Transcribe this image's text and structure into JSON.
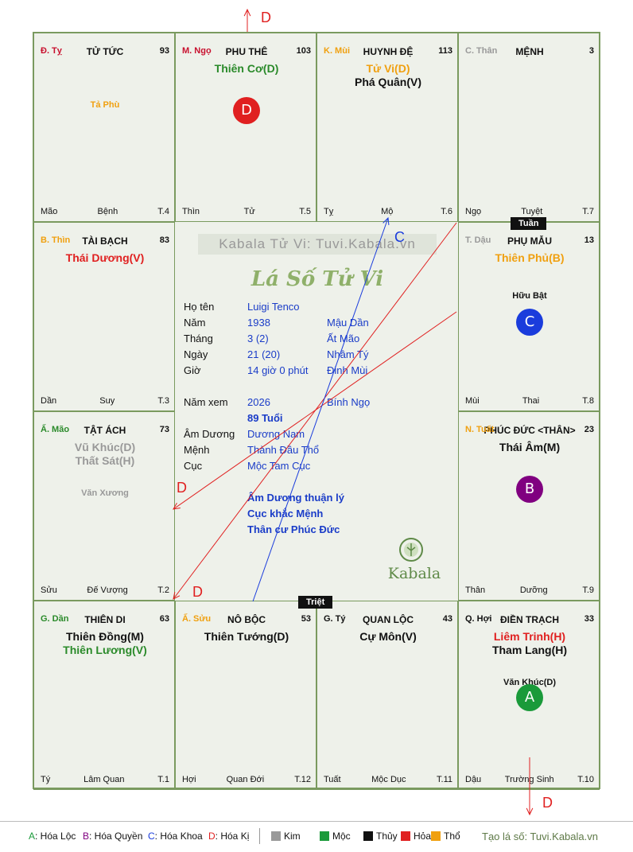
{
  "cells": [
    {
      "stem": "Đ. Tỵ",
      "stem_color": "#c8102e",
      "name": "TỬ TỨC",
      "num": "93",
      "stars": [],
      "minor": [
        "Tả Phù"
      ],
      "minor_color": "#f0a010",
      "badge": "",
      "foot": [
        "Mão",
        "Bệnh",
        "T.4"
      ]
    },
    {
      "stem": "M. Ngọ",
      "stem_color": "#c8102e",
      "name": "PHU THÊ",
      "num": "103",
      "stars": [
        {
          "t": "Thiên Cơ(D)",
          "c": "#2a8a2a"
        }
      ],
      "minor": [],
      "badge": "D",
      "badge_color": "#e02020",
      "foot": [
        "Thìn",
        "Tử",
        "T.5"
      ]
    },
    {
      "stem": "K. Mùi",
      "stem_color": "#f0a010",
      "name": "HUYNH ĐỆ",
      "num": "113",
      "stars": [
        {
          "t": "Tử Vi(D)",
          "c": "#f0a010"
        },
        {
          "t": "Phá Quân(V)",
          "c": "#111111"
        }
      ],
      "minor": [],
      "badge": "",
      "foot": [
        "Tỵ",
        "Mộ",
        "T.6"
      ]
    },
    {
      "stem": "C. Thân",
      "stem_color": "#999999",
      "name": "MỆNH",
      "num": "3",
      "stars": [],
      "minor": [],
      "badge": "",
      "foot": [
        "Ngọ",
        "Tuyệt",
        "T.7"
      ]
    },
    {
      "stem": "B. Thìn",
      "stem_color": "#f0a010",
      "name": "TÀI BẠCH",
      "num": "83",
      "stars": [
        {
          "t": "Thái Dương(V)",
          "c": "#e02020"
        }
      ],
      "minor": [],
      "badge": "",
      "foot": [
        "Dần",
        "Suy",
        "T.3"
      ]
    },
    {
      "stem": "T. Dậu",
      "stem_color": "#999999",
      "name": "PHỤ MẪU",
      "num": "13",
      "stars": [
        {
          "t": "Thiên Phủ(B)",
          "c": "#f0a010"
        }
      ],
      "minor": [
        "Hữu Bật"
      ],
      "minor_color": "#111111",
      "badge": "C",
      "badge_color": "#1a3cdc",
      "foot": [
        "Mùi",
        "Thai",
        "T.8"
      ]
    },
    {
      "stem": "Ấ. Mão",
      "stem_color": "#2a8a2a",
      "name": "TẬT ÁCH",
      "num": "73",
      "stars": [
        {
          "t": "Vũ Khúc(D)",
          "c": "#999999"
        },
        {
          "t": "Thất Sát(H)",
          "c": "#999999"
        }
      ],
      "minor": [
        "Văn Xương"
      ],
      "minor_color": "#999999",
      "badge": "",
      "foot": [
        "Sửu",
        "Đế Vượng",
        "T.2"
      ]
    },
    {
      "stem": "N. Tuất",
      "stem_color": "#f0a010",
      "name": "PHÚC ĐỨC <THÂN>",
      "num": "23",
      "stars": [
        {
          "t": "Thái Âm(M)",
          "c": "#111111"
        }
      ],
      "minor": [],
      "badge": "B",
      "badge_color": "#800080",
      "foot": [
        "Thân",
        "Dưỡng",
        "T.9"
      ]
    },
    {
      "stem": "G. Dần",
      "stem_color": "#2a8a2a",
      "name": "THIÊN DI",
      "num": "63",
      "stars": [
        {
          "t": "Thiên Đồng(M)",
          "c": "#111111"
        },
        {
          "t": "Thiên Lương(V)",
          "c": "#2a8a2a"
        }
      ],
      "minor": [],
      "badge": "",
      "foot": [
        "Tý",
        "Lâm Quan",
        "T.1"
      ]
    },
    {
      "stem": "Ấ. Sửu",
      "stem_color": "#f0a010",
      "name": "NÔ BỘC",
      "num": "53",
      "stars": [
        {
          "t": "Thiên Tướng(D)",
          "c": "#111111"
        }
      ],
      "minor": [],
      "badge": "",
      "foot": [
        "Hợi",
        "Quan Đới",
        "T.12"
      ]
    },
    {
      "stem": "G. Tý",
      "stem_color": "#111111",
      "name": "QUAN LỘC",
      "num": "43",
      "stars": [
        {
          "t": "Cự Môn(V)",
          "c": "#111111"
        }
      ],
      "minor": [],
      "badge": "",
      "foot": [
        "Tuất",
        "Mộc Dục",
        "T.11"
      ]
    },
    {
      "stem": "Q. Hợi",
      "stem_color": "#111111",
      "name": "ĐIỀN TRẠCH",
      "num": "33",
      "stars": [
        {
          "t": "Liêm Trinh(H)",
          "c": "#e02020"
        },
        {
          "t": "Tham Lang(H)",
          "c": "#111111"
        }
      ],
      "minor": [
        "Văn Khúc(D)"
      ],
      "minor_color": "#111111",
      "badge": "A",
      "badge_color": "#1a9a3a",
      "foot": [
        "Dậu",
        "Trường Sinh",
        "T.10"
      ]
    }
  ],
  "tags": {
    "tuan": "Tuần",
    "triet": "Triệt"
  },
  "center": {
    "watermark": "Kabala Tử Vi: Tuvi.Kabala.vn",
    "title": "Lá Số Tử Vi",
    "rows": [
      {
        "k": "Họ tên",
        "v": "Luigi Tenco",
        "w": ""
      },
      {
        "k": "Năm",
        "v": "1938",
        "w": "Mậu Dần"
      },
      {
        "k": "Tháng",
        "v": "3  (2)",
        "w": "Ất Mão"
      },
      {
        "k": "Ngày",
        "v": "21  (20)",
        "w": "Nhâm Tý"
      },
      {
        "k": "Giờ",
        "v": "14 giờ 0 phút",
        "w": "Đinh Mùi"
      },
      {
        "k": "Năm xem",
        "v": "2026",
        "w": "Bính Ngọ"
      },
      {
        "k": "",
        "v": "89 Tuổi",
        "w": ""
      },
      {
        "k": "Âm Dương",
        "v": "Dương Nam",
        "w": ""
      },
      {
        "k": "Mệnh",
        "v": "Thành Đầu Thổ",
        "w": ""
      },
      {
        "k": "Cục",
        "v": "Mộc Tam Cục",
        "w": ""
      }
    ],
    "notes": [
      "Âm Dương thuận lý",
      "Cục khắc Mệnh",
      "Thân cư Phúc Đức"
    ],
    "brand": "Kabala"
  },
  "arrows": {
    "d_top": "D",
    "d_bottom": "D",
    "d_left1": "D",
    "d_left2": "D",
    "c_label": "C"
  },
  "legend": {
    "items": [
      {
        "k": "A",
        "t": ": Hóa Lộc",
        "c": "#1a9a3a"
      },
      {
        "k": "B",
        "t": ": Hóa Quyền",
        "c": "#800080"
      },
      {
        "k": "C",
        "t": ": Hóa Khoa",
        "c": "#1a3cdc"
      },
      {
        "k": "D",
        "t": ": Hóa Kị",
        "c": "#e02020"
      }
    ],
    "elements": [
      {
        "t": "Kim",
        "c": "#999999"
      },
      {
        "t": "Mộc",
        "c": "#1a9a3a"
      },
      {
        "t": "Thủy",
        "c": "#111111"
      },
      {
        "t": "Hỏa",
        "c": "#e02020"
      },
      {
        "t": "Thổ",
        "c": "#f0a010"
      }
    ],
    "credit": "Tạo lá số: Tuvi.Kabala.vn"
  }
}
